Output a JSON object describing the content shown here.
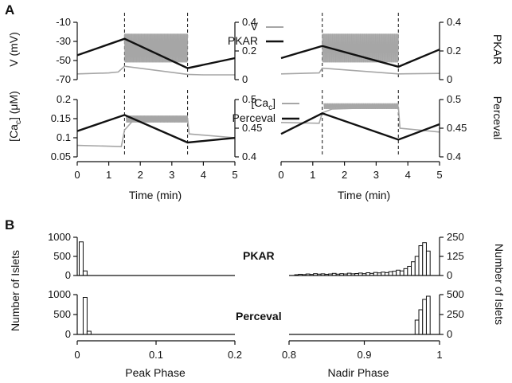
{
  "figure": {
    "panel_a_label": "A",
    "panel_b_label": "B",
    "axis_labels": {
      "v": "V (mV)",
      "pkar": "PKAR",
      "cac": "[Ca",
      "cac_sub": "c",
      "cac_unit": "] (μM)",
      "perceval": "Perceval",
      "time": "Time (min)",
      "number_islets": "Number of Islets",
      "peak_phase": "Peak Phase",
      "nadir_phase": "Nadir Phase"
    },
    "legend": {
      "v": "V",
      "pkar": "PKAR",
      "cac": "[Ca",
      "cac_sub": "c",
      "cac_close": "]",
      "perceval": "Perceval"
    },
    "inline_labels": {
      "pkar": "PKAR",
      "perceval": "Perceval"
    },
    "colors": {
      "gray": "#a6a6a6",
      "black": "#111111"
    }
  },
  "chart_data": [
    {
      "id": "A-left-top",
      "type": "line",
      "xlim": [
        0,
        5
      ],
      "ylim_left": [
        -70,
        -10
      ],
      "ylim_right": [
        0,
        0.4
      ],
      "yticks_left": [
        "-10",
        "-30",
        "-50",
        "-70"
      ],
      "yticks_right": [
        "0.4",
        "0.2",
        "0"
      ],
      "active_window": [
        1.5,
        3.5
      ],
      "series": [
        {
          "name": "V",
          "axis": "left",
          "color": "#a6a6a6",
          "x": [
            0,
            0.5,
            1,
            1.3,
            1.5,
            3.5,
            4,
            5
          ],
          "y": [
            -64,
            -63.5,
            -63,
            -62,
            -56,
            -64.5,
            -65,
            -65
          ],
          "burst": {
            "x0": 1.5,
            "x1": 3.5,
            "low": -52,
            "high": -22
          }
        },
        {
          "name": "PKAR",
          "axis": "right",
          "color": "#111111",
          "x": [
            0,
            1.5,
            3.5,
            5
          ],
          "y": [
            0.17,
            0.285,
            0.08,
            0.15
          ]
        }
      ]
    },
    {
      "id": "A-right-top",
      "type": "line",
      "xlim": [
        0,
        5
      ],
      "ylim_left": [
        -70,
        -10
      ],
      "ylim_right": [
        0,
        0.4
      ],
      "yticks_right": [
        "0.4",
        "0.2",
        "0"
      ],
      "active_window": [
        1.3,
        3.7
      ],
      "series": [
        {
          "name": "V",
          "axis": "left",
          "color": "#a6a6a6",
          "x": [
            0,
            1.2,
            1.3,
            3.7,
            5
          ],
          "y": [
            -64,
            -63,
            -58,
            -64,
            -63.5
          ],
          "burst": {
            "x0": 1.3,
            "x1": 3.7,
            "low": -52,
            "high": -22
          }
        },
        {
          "name": "PKAR",
          "axis": "right",
          "color": "#111111",
          "x": [
            0,
            1.3,
            3.7,
            5
          ],
          "y": [
            0.15,
            0.235,
            0.09,
            0.21
          ]
        }
      ]
    },
    {
      "id": "A-left-bottom",
      "type": "line",
      "xlim": [
        0,
        5
      ],
      "ylim_left": [
        0.05,
        0.2
      ],
      "ylim_right": [
        0.4,
        0.5
      ],
      "yticks_left": [
        "0.2",
        "0.15",
        "0.1",
        "0.05"
      ],
      "yticks_right": [
        "0.5",
        "0.45",
        "0.4"
      ],
      "xticks": [
        "0",
        "1",
        "2",
        "3",
        "4",
        "5"
      ],
      "active_window": [
        1.5,
        3.5
      ],
      "series": [
        {
          "name": "[Cac]",
          "axis": "left",
          "color": "#a6a6a6",
          "x": [
            0,
            1.4,
            1.5,
            1.8,
            3.5,
            3.55,
            5
          ],
          "y": [
            0.08,
            0.077,
            0.12,
            0.148,
            0.15,
            0.11,
            0.1
          ],
          "burst": {
            "x0": 1.55,
            "x1": 3.5,
            "low": 0.14,
            "high": 0.158
          }
        },
        {
          "name": "Perceval",
          "axis": "right",
          "color": "#111111",
          "x": [
            0,
            1.5,
            3.5,
            5
          ],
          "y": [
            0.445,
            0.473,
            0.425,
            0.433
          ]
        }
      ]
    },
    {
      "id": "A-right-bottom",
      "type": "line",
      "xlim": [
        0,
        5
      ],
      "ylim_left": [
        0.05,
        0.2
      ],
      "ylim_right": [
        0.4,
        0.5
      ],
      "yticks_right": [
        "0.5",
        "0.45",
        "0.4"
      ],
      "xticks": [
        "0",
        "1",
        "2",
        "3",
        "4",
        "5"
      ],
      "active_window": [
        1.3,
        3.7
      ],
      "series": [
        {
          "name": "[Cac]",
          "axis": "left",
          "color": "#a6a6a6",
          "x": [
            0,
            1.2,
            1.3,
            1.6,
            3.7,
            3.75,
            5
          ],
          "y": [
            0.14,
            0.138,
            0.165,
            0.175,
            0.18,
            0.125,
            0.115
          ],
          "burst": {
            "x0": 1.35,
            "x1": 3.7,
            "low": 0.175,
            "high": 0.19
          }
        },
        {
          "name": "Perceval",
          "axis": "right",
          "color": "#111111",
          "x": [
            0,
            1.3,
            3.7,
            5
          ],
          "y": [
            0.44,
            0.476,
            0.43,
            0.457
          ]
        }
      ]
    },
    {
      "id": "B-peak-pkar",
      "type": "bar",
      "xlim": [
        0,
        0.2
      ],
      "ylim": [
        0,
        1000
      ],
      "yticks": [
        "1000",
        "500",
        "0"
      ],
      "bin_width": 0.005,
      "bins": [
        0.005,
        0.01
      ],
      "values": [
        880,
        120
      ]
    },
    {
      "id": "B-peak-perceval",
      "type": "bar",
      "xlim": [
        0,
        0.2
      ],
      "ylim": [
        0,
        1000
      ],
      "yticks": [
        "1000",
        "500",
        "0"
      ],
      "xticks": [
        "0",
        "0.1",
        "0.2"
      ],
      "bin_width": 0.005,
      "bins": [
        0.01,
        0.015
      ],
      "values": [
        930,
        80
      ]
    },
    {
      "id": "B-nadir-pkar",
      "type": "bar",
      "xlim": [
        0.8,
        1.0
      ],
      "ylim": [
        0,
        250
      ],
      "yticks": [
        "250",
        "125",
        "0"
      ],
      "bin_width": 0.005,
      "bins": [
        0.81,
        0.815,
        0.82,
        0.825,
        0.83,
        0.835,
        0.84,
        0.845,
        0.85,
        0.855,
        0.86,
        0.865,
        0.87,
        0.875,
        0.88,
        0.885,
        0.89,
        0.895,
        0.9,
        0.905,
        0.91,
        0.915,
        0.92,
        0.925,
        0.93,
        0.935,
        0.94,
        0.945,
        0.95,
        0.955,
        0.96,
        0.965,
        0.97,
        0.975,
        0.98,
        0.985
      ],
      "values": [
        5,
        8,
        6,
        10,
        7,
        12,
        9,
        11,
        8,
        10,
        14,
        9,
        12,
        10,
        15,
        11,
        13,
        16,
        12,
        18,
        14,
        20,
        17,
        22,
        19,
        25,
        28,
        35,
        30,
        45,
        60,
        90,
        125,
        195,
        215,
        160
      ]
    },
    {
      "id": "B-nadir-perceval",
      "type": "bar",
      "xlim": [
        0.8,
        1.0
      ],
      "ylim": [
        0,
        500
      ],
      "yticks": [
        "500",
        "250",
        "0"
      ],
      "xticks": [
        "0.8",
        "0.9",
        "1"
      ],
      "bin_width": 0.005,
      "bins": [
        0.97,
        0.975,
        0.98,
        0.985
      ],
      "values": [
        180,
        310,
        440,
        480
      ]
    }
  ]
}
